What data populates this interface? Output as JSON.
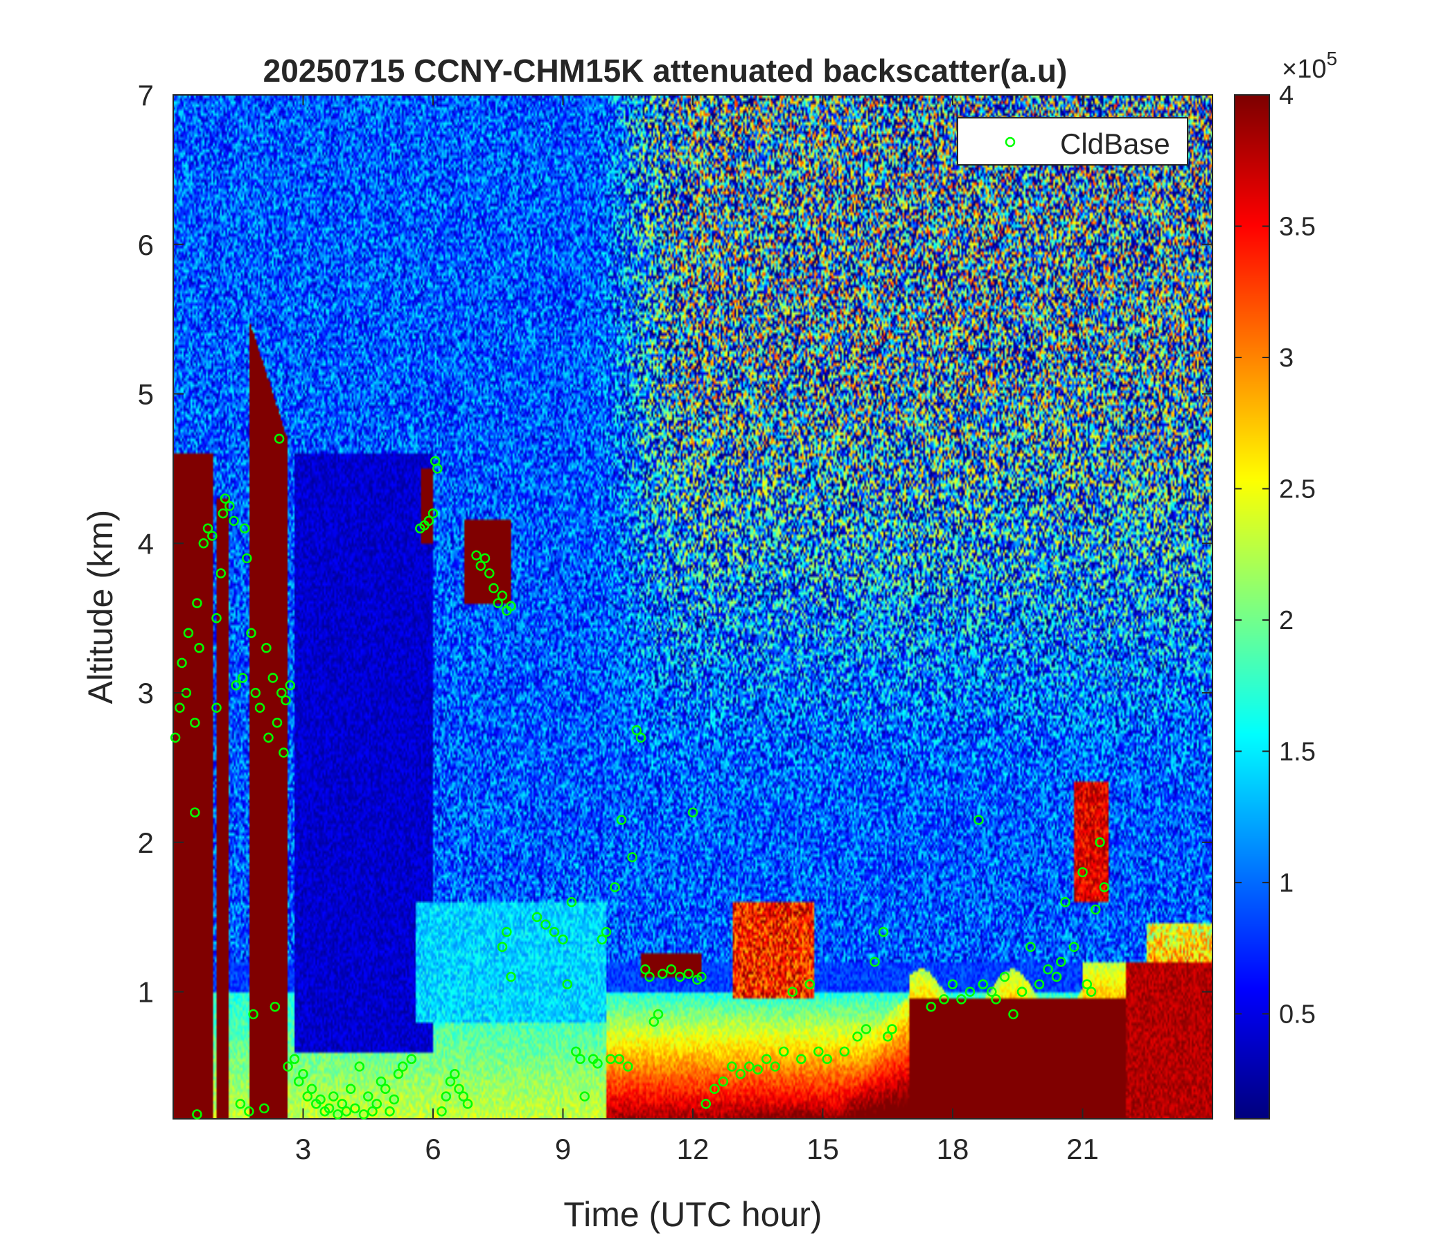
{
  "chart_data": {
    "type": "heatmap",
    "title": "20250715 CCNY-CHM15K attenuated backscatter(a.u)",
    "xlabel": "Time (UTC hour)",
    "ylabel": "Altitude (km)",
    "xlim": [
      0,
      24
    ],
    "ylim": [
      0.15,
      7
    ],
    "xticks": [
      3,
      6,
      9,
      12,
      15,
      18,
      21
    ],
    "yticks": [
      1,
      2,
      3,
      4,
      5,
      6,
      7
    ],
    "colorbar": {
      "colormap": "jet",
      "clim": [
        0.1,
        4
      ],
      "ticks": [
        0.5,
        1,
        1.5,
        2,
        2.5,
        3,
        3.5,
        4
      ],
      "tick_labels": [
        "0.5",
        "1",
        "1.5",
        "2",
        "2.5",
        "3",
        "3.5",
        "4"
      ],
      "exponent_base": "×10",
      "exponent": "5"
    },
    "legend": {
      "position": "top-right",
      "entries": [
        {
          "label": "CldBase",
          "marker": "circle",
          "color": "#00ff00"
        }
      ]
    },
    "series": [
      {
        "name": "CldBase",
        "marker_color": "#00ff00",
        "points": [
          [
            0.05,
            2.7
          ],
          [
            0.15,
            2.9
          ],
          [
            0.2,
            3.2
          ],
          [
            0.3,
            3.0
          ],
          [
            0.35,
            3.4
          ],
          [
            0.5,
            2.8
          ],
          [
            0.55,
            3.6
          ],
          [
            0.6,
            3.3
          ],
          [
            0.7,
            4.0
          ],
          [
            0.8,
            4.1
          ],
          [
            0.9,
            4.05
          ],
          [
            0.5,
            2.2
          ],
          [
            0.55,
            0.18
          ],
          [
            1.0,
            2.9
          ],
          [
            1.0,
            3.5
          ],
          [
            1.1,
            3.8
          ],
          [
            1.15,
            4.2
          ],
          [
            1.2,
            4.3
          ],
          [
            1.3,
            4.25
          ],
          [
            1.4,
            4.15
          ],
          [
            1.45,
            3.05
          ],
          [
            1.55,
            0.25
          ],
          [
            1.6,
            3.1
          ],
          [
            1.65,
            4.1
          ],
          [
            1.7,
            3.9
          ],
          [
            1.75,
            0.2
          ],
          [
            1.8,
            3.4
          ],
          [
            1.85,
            0.85
          ],
          [
            1.9,
            3.0
          ],
          [
            2.0,
            2.9
          ],
          [
            2.1,
            0.22
          ],
          [
            2.15,
            3.3
          ],
          [
            2.2,
            2.7
          ],
          [
            2.3,
            3.1
          ],
          [
            2.35,
            0.9
          ],
          [
            2.4,
            2.8
          ],
          [
            2.45,
            4.7
          ],
          [
            2.5,
            3.0
          ],
          [
            2.55,
            2.6
          ],
          [
            2.6,
            2.95
          ],
          [
            2.65,
            0.5
          ],
          [
            2.7,
            3.05
          ],
          [
            2.8,
            0.55
          ],
          [
            2.9,
            0.4
          ],
          [
            3.0,
            0.45
          ],
          [
            3.1,
            0.3
          ],
          [
            3.2,
            0.35
          ],
          [
            3.3,
            0.25
          ],
          [
            3.4,
            0.28
          ],
          [
            3.5,
            0.2
          ],
          [
            3.6,
            0.22
          ],
          [
            3.7,
            0.3
          ],
          [
            3.8,
            0.18
          ],
          [
            3.9,
            0.25
          ],
          [
            4.0,
            0.2
          ],
          [
            4.1,
            0.35
          ],
          [
            4.2,
            0.22
          ],
          [
            4.3,
            0.5
          ],
          [
            4.4,
            0.18
          ],
          [
            4.5,
            0.3
          ],
          [
            4.6,
            0.2
          ],
          [
            4.7,
            0.25
          ],
          [
            4.8,
            0.4
          ],
          [
            4.9,
            0.35
          ],
          [
            5.0,
            0.2
          ],
          [
            5.1,
            0.28
          ],
          [
            5.2,
            0.45
          ],
          [
            5.3,
            0.5
          ],
          [
            5.5,
            0.55
          ],
          [
            5.7,
            4.1
          ],
          [
            5.8,
            4.12
          ],
          [
            5.9,
            4.15
          ],
          [
            6.0,
            4.2
          ],
          [
            6.05,
            4.55
          ],
          [
            6.1,
            4.5
          ],
          [
            6.2,
            0.2
          ],
          [
            6.3,
            0.3
          ],
          [
            6.4,
            0.4
          ],
          [
            6.5,
            0.45
          ],
          [
            6.6,
            0.35
          ],
          [
            6.7,
            0.3
          ],
          [
            6.8,
            0.25
          ],
          [
            7.0,
            3.92
          ],
          [
            7.1,
            3.85
          ],
          [
            7.2,
            3.9
          ],
          [
            7.3,
            3.8
          ],
          [
            7.4,
            3.7
          ],
          [
            7.5,
            3.6
          ],
          [
            7.6,
            3.65
          ],
          [
            7.7,
            3.55
          ],
          [
            7.8,
            3.58
          ],
          [
            7.6,
            1.3
          ],
          [
            7.7,
            1.4
          ],
          [
            7.8,
            1.1
          ],
          [
            8.4,
            1.5
          ],
          [
            8.6,
            1.45
          ],
          [
            8.8,
            1.4
          ],
          [
            9.0,
            1.35
          ],
          [
            9.1,
            1.05
          ],
          [
            9.2,
            1.6
          ],
          [
            9.3,
            0.6
          ],
          [
            9.4,
            0.55
          ],
          [
            9.5,
            0.3
          ],
          [
            9.7,
            0.55
          ],
          [
            9.8,
            0.52
          ],
          [
            9.9,
            1.35
          ],
          [
            10.0,
            1.4
          ],
          [
            10.1,
            0.55
          ],
          [
            10.2,
            1.7
          ],
          [
            10.3,
            0.55
          ],
          [
            10.35,
            2.15
          ],
          [
            10.5,
            0.5
          ],
          [
            10.6,
            1.9
          ],
          [
            10.7,
            2.75
          ],
          [
            10.8,
            2.7
          ],
          [
            10.9,
            1.15
          ],
          [
            11.0,
            1.1
          ],
          [
            11.1,
            0.8
          ],
          [
            11.2,
            0.85
          ],
          [
            11.3,
            1.12
          ],
          [
            11.5,
            1.15
          ],
          [
            11.7,
            1.1
          ],
          [
            11.9,
            1.12
          ],
          [
            12.0,
            2.2
          ],
          [
            12.1,
            1.08
          ],
          [
            12.2,
            1.1
          ],
          [
            12.3,
            0.25
          ],
          [
            12.5,
            0.35
          ],
          [
            12.7,
            0.4
          ],
          [
            12.9,
            0.5
          ],
          [
            13.1,
            0.45
          ],
          [
            13.3,
            0.5
          ],
          [
            13.5,
            0.48
          ],
          [
            13.7,
            0.55
          ],
          [
            13.9,
            0.5
          ],
          [
            14.1,
            0.6
          ],
          [
            14.3,
            1.0
          ],
          [
            14.5,
            0.55
          ],
          [
            14.7,
            1.05
          ],
          [
            14.9,
            0.6
          ],
          [
            15.1,
            0.55
          ],
          [
            15.5,
            0.6
          ],
          [
            15.8,
            0.7
          ],
          [
            16.0,
            0.75
          ],
          [
            16.2,
            1.2
          ],
          [
            16.4,
            1.4
          ],
          [
            16.5,
            0.7
          ],
          [
            16.6,
            0.75
          ],
          [
            17.5,
            0.9
          ],
          [
            17.8,
            0.95
          ],
          [
            18.0,
            1.05
          ],
          [
            18.2,
            0.95
          ],
          [
            18.4,
            1.0
          ],
          [
            18.6,
            2.15
          ],
          [
            18.7,
            1.05
          ],
          [
            18.9,
            1.0
          ],
          [
            19.0,
            0.95
          ],
          [
            19.2,
            1.1
          ],
          [
            19.4,
            0.85
          ],
          [
            19.6,
            1.0
          ],
          [
            19.8,
            1.3
          ],
          [
            20.0,
            1.05
          ],
          [
            20.2,
            1.15
          ],
          [
            20.4,
            1.1
          ],
          [
            20.5,
            1.2
          ],
          [
            20.6,
            1.6
          ],
          [
            20.8,
            1.3
          ],
          [
            21.0,
            1.8
          ],
          [
            21.1,
            1.05
          ],
          [
            21.2,
            1.0
          ],
          [
            21.3,
            1.55
          ],
          [
            21.4,
            2.0
          ],
          [
            21.5,
            1.7
          ]
        ]
      }
    ]
  }
}
